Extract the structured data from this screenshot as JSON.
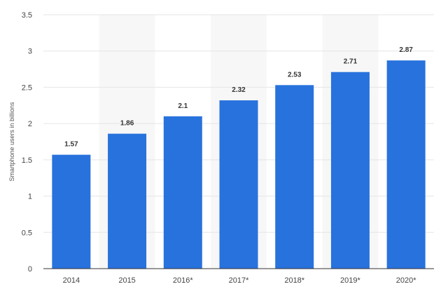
{
  "chart_data": {
    "type": "bar",
    "categories": [
      "2014",
      "2015",
      "2016*",
      "2017*",
      "2018*",
      "2019*",
      "2020*"
    ],
    "values": [
      1.57,
      1.86,
      2.1,
      2.32,
      2.53,
      2.71,
      2.87
    ],
    "value_labels": [
      "1.57",
      "1.86",
      "2.1",
      "2.32",
      "2.53",
      "2.71",
      "2.87"
    ],
    "title": "",
    "xlabel": "",
    "ylabel": "Smartphone users in billions",
    "ylim": [
      0,
      3.5
    ],
    "yticks": [
      0,
      0.5,
      1,
      1.5,
      2,
      2.5,
      3,
      3.5
    ],
    "ytick_labels": [
      "0",
      "0.5",
      "1",
      "1.5",
      "2",
      "2.5",
      "3",
      "3.5"
    ],
    "grid": true,
    "legend": "none",
    "bar_color": "#2872dd",
    "alternate_band_color": "#f7f7f7"
  }
}
